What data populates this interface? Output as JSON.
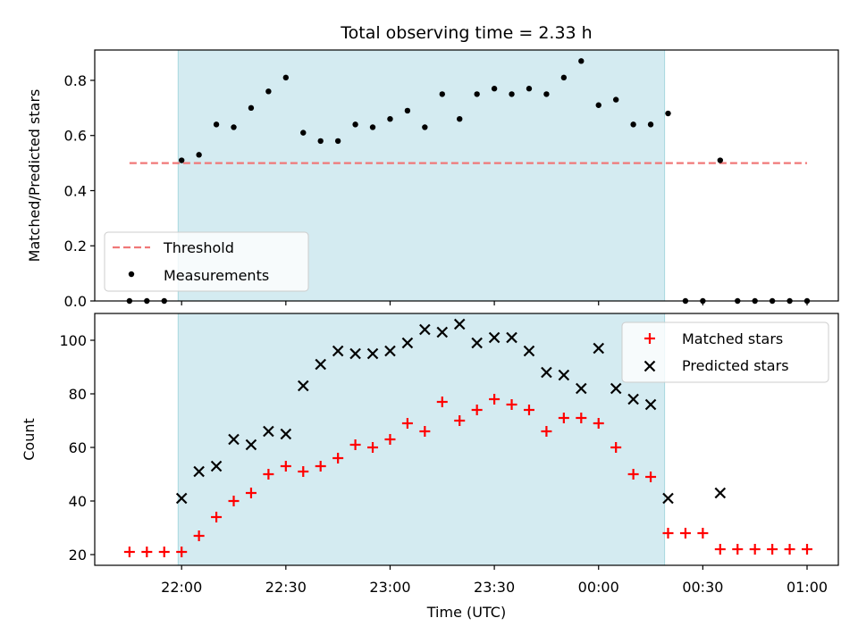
{
  "chart_data": [
    {
      "type": "scatter",
      "title": "Total observing time = 2.33 h",
      "ylabel": "Matched/Predicted stars",
      "xlabel": "",
      "ylim": [
        0,
        0.91
      ],
      "yticks": [
        0.0,
        0.2,
        0.4,
        0.6,
        0.8
      ],
      "ytick_labels": [
        "0.0",
        "0.2",
        "0.4",
        "0.6",
        "0.8"
      ],
      "threshold": {
        "name": "Threshold",
        "x_start": "21:45",
        "x_end": "01:00",
        "value": 0.5,
        "color": "#f07878"
      },
      "shaded_span": {
        "start": "21:59",
        "end": "00:19",
        "color": "#d4ebf1"
      },
      "legend_position": "lower left",
      "series": [
        {
          "name": "Measurements",
          "color": "#000000",
          "x": [
            "21:45",
            "21:50",
            "21:55",
            "22:00",
            "22:05",
            "22:10",
            "22:15",
            "22:20",
            "22:25",
            "22:30",
            "22:35",
            "22:40",
            "22:45",
            "22:50",
            "22:55",
            "23:00",
            "23:05",
            "23:10",
            "23:15",
            "23:20",
            "23:25",
            "23:30",
            "23:35",
            "23:40",
            "23:45",
            "23:50",
            "23:55",
            "00:00",
            "00:05",
            "00:10",
            "00:15",
            "00:20",
            "00:25",
            "00:30",
            "00:35",
            "00:40",
            "00:45",
            "00:50",
            "00:55",
            "01:00"
          ],
          "y": [
            0.0,
            0.0,
            0.0,
            0.51,
            0.53,
            0.64,
            0.63,
            0.7,
            0.76,
            0.81,
            0.61,
            0.58,
            0.58,
            0.64,
            0.63,
            0.66,
            0.69,
            0.63,
            0.75,
            0.66,
            0.75,
            0.77,
            0.75,
            0.77,
            0.75,
            0.81,
            0.87,
            0.71,
            0.73,
            0.64,
            0.64,
            0.68,
            0.0,
            0.0,
            0.51,
            0.0,
            0.0,
            0.0,
            0.0,
            0.0
          ]
        }
      ]
    },
    {
      "type": "scatter",
      "title": "",
      "ylabel": "Count",
      "xlabel": "Time (UTC)",
      "ylim": [
        16,
        110
      ],
      "yticks": [
        20,
        40,
        60,
        80,
        100
      ],
      "ytick_labels": [
        "20",
        "40",
        "60",
        "80",
        "100"
      ],
      "xlim": [
        "21:35",
        "01:09"
      ],
      "xticks": [
        "22:00",
        "22:30",
        "23:00",
        "23:30",
        "00:00",
        "00:30",
        "01:00"
      ],
      "xtick_labels": [
        "22:00",
        "22:30",
        "23:00",
        "23:30",
        "00:00",
        "00:30",
        "01:00"
      ],
      "shaded_span": {
        "start": "21:59",
        "end": "00:19",
        "color": "#d4ebf1"
      },
      "legend_position": "upper right",
      "series": [
        {
          "name": "Matched stars",
          "marker": "plus",
          "color": "#ff0000",
          "x": [
            "21:45",
            "21:50",
            "21:55",
            "22:00",
            "22:05",
            "22:10",
            "22:15",
            "22:20",
            "22:25",
            "22:30",
            "22:35",
            "22:40",
            "22:45",
            "22:50",
            "22:55",
            "23:00",
            "23:05",
            "23:10",
            "23:15",
            "23:20",
            "23:25",
            "23:30",
            "23:35",
            "23:40",
            "23:45",
            "23:50",
            "23:55",
            "00:00",
            "00:05",
            "00:10",
            "00:15",
            "00:20",
            "00:25",
            "00:30",
            "00:35",
            "00:40",
            "00:45",
            "00:50",
            "00:55",
            "01:00"
          ],
          "y": [
            21,
            21,
            21,
            21,
            27,
            34,
            40,
            43,
            50,
            53,
            51,
            53,
            56,
            61,
            60,
            63,
            69,
            66,
            77,
            70,
            74,
            78,
            76,
            74,
            66,
            71,
            71,
            69,
            60,
            50,
            49,
            28,
            28,
            28,
            22,
            22,
            22,
            22,
            22,
            22
          ]
        },
        {
          "name": "Predicted stars",
          "marker": "x",
          "color": "#000000",
          "x": [
            "22:00",
            "22:05",
            "22:10",
            "22:15",
            "22:20",
            "22:25",
            "22:30",
            "22:35",
            "22:40",
            "22:45",
            "22:50",
            "22:55",
            "23:00",
            "23:05",
            "23:10",
            "23:15",
            "23:20",
            "23:25",
            "23:30",
            "23:35",
            "23:40",
            "23:45",
            "23:50",
            "23:55",
            "00:00",
            "00:05",
            "00:10",
            "00:15",
            "00:20",
            "00:35"
          ],
          "y": [
            41,
            51,
            53,
            63,
            61,
            66,
            65,
            83,
            91,
            96,
            95,
            95,
            96,
            99,
            104,
            103,
            106,
            99,
            101,
            101,
            96,
            88,
            87,
            82,
            97,
            82,
            78,
            76,
            41,
            43
          ]
        }
      ]
    }
  ]
}
